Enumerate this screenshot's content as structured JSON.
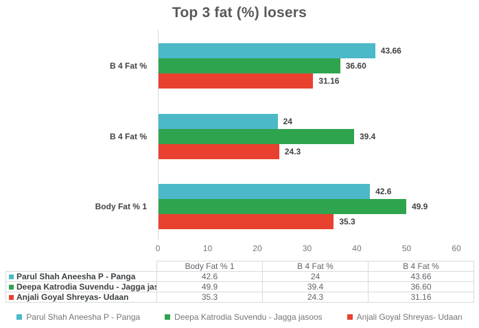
{
  "title": "Top 3 fat (%) losers",
  "chart_data": {
    "type": "bar",
    "orientation": "horizontal",
    "title": "Top 3 fat (%) losers",
    "categories": [
      "B 4 Fat %",
      "B 4 Fat %",
      "Body Fat % 1"
    ],
    "series": [
      {
        "name": "Parul Shah Aneesha P - Panga",
        "color": "#4BB9C8",
        "values": [
          43.66,
          24,
          42.6
        ],
        "labels": [
          "43.66",
          "24",
          "42.6"
        ]
      },
      {
        "name": "Deepa Katrodia Suvendu - Jagga jasoos",
        "color": "#2FA44F",
        "values": [
          36.6,
          39.4,
          49.9
        ],
        "labels": [
          "36.60",
          "39.4",
          "49.9"
        ]
      },
      {
        "name": "Anjali Goyal Shreyas- Udaan",
        "color": "#E8412F",
        "values": [
          31.16,
          24.3,
          35.3
        ],
        "labels": [
          "31.16",
          "24.3",
          "35.3"
        ]
      }
    ],
    "xlim": [
      0,
      60
    ],
    "x_ticks": [
      "0",
      "10",
      "20",
      "30",
      "40",
      "50",
      "60"
    ],
    "grid": false,
    "legend_position": "bottom"
  },
  "table": {
    "headers": [
      "",
      "Body Fat % 1",
      "B 4 Fat %",
      "B 4 Fat %"
    ],
    "rows": [
      {
        "name": "Parul Shah Aneesha P - Panga",
        "color": "#4BB9C8",
        "values": [
          "42.6",
          "24",
          "43.66"
        ]
      },
      {
        "name": "Deepa Katrodia Suvendu - Jagga jasoos",
        "color": "#2FA44F",
        "values": [
          "49.9",
          "39.4",
          "36.60"
        ]
      },
      {
        "name": "Anjali Goyal Shreyas- Udaan",
        "color": "#E8412F",
        "values": [
          "35.3",
          "24.3",
          "31.16"
        ]
      }
    ]
  },
  "legend": {
    "items": [
      {
        "label": "Parul Shah Aneesha P - Panga",
        "color": "#4BB9C8"
      },
      {
        "label": "Deepa Katrodia Suvendu - Jagga jasoos",
        "color": "#2FA44F"
      },
      {
        "label": "Anjali Goyal Shreyas- Udaan",
        "color": "#E8412F"
      }
    ]
  }
}
